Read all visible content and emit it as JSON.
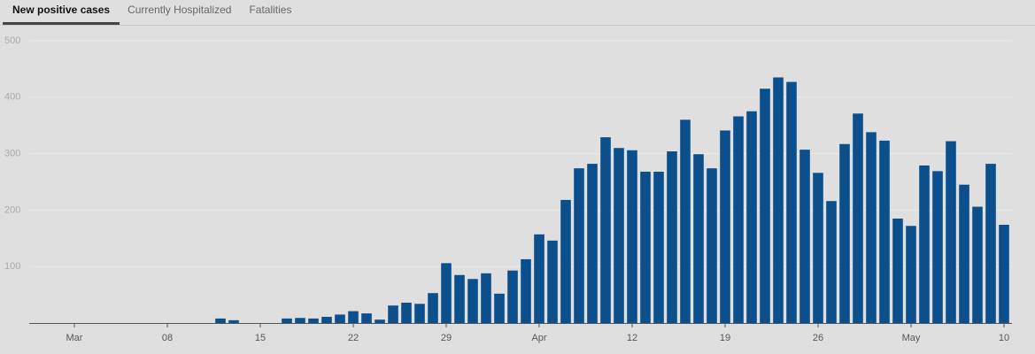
{
  "tabs": [
    "New positive cases",
    "Currently Hospitalized",
    "Fatalities"
  ],
  "active_tab": 0,
  "chart_data": {
    "type": "bar",
    "color": "#0b4f8c",
    "grid": true,
    "categories": [
      "Mar",
      null,
      null,
      null,
      null,
      null,
      null,
      "08",
      null,
      null,
      null,
      null,
      null,
      null,
      "15",
      null,
      null,
      null,
      null,
      null,
      null,
      "22",
      null,
      null,
      null,
      null,
      null,
      null,
      "29",
      null,
      null,
      null,
      null,
      null,
      null,
      "Apr",
      null,
      null,
      null,
      null,
      null,
      null,
      "12",
      null,
      null,
      null,
      null,
      null,
      null,
      "19",
      null,
      null,
      null,
      null,
      null,
      null,
      "26",
      null,
      null,
      null,
      null,
      null,
      null,
      "May",
      null,
      null,
      null,
      null,
      null,
      null,
      "10"
    ],
    "values": [
      0,
      0,
      0,
      0,
      0,
      0,
      0,
      0,
      0,
      0,
      0,
      8,
      5,
      0,
      0,
      0,
      8,
      9,
      8,
      11,
      15,
      21,
      17,
      6,
      31,
      36,
      34,
      53,
      106,
      85,
      78,
      88,
      52,
      93,
      113,
      157,
      146,
      218,
      274,
      282,
      329,
      310,
      306,
      268,
      268,
      304,
      360,
      299,
      274,
      341,
      366,
      375,
      415,
      435,
      427,
      307,
      266,
      216,
      317,
      371,
      338,
      323,
      185,
      172,
      279,
      269,
      322,
      245,
      206,
      282,
      174
    ],
    "ylim": [
      0,
      500
    ],
    "yticks": [
      100,
      200,
      300,
      400,
      500
    ]
  }
}
